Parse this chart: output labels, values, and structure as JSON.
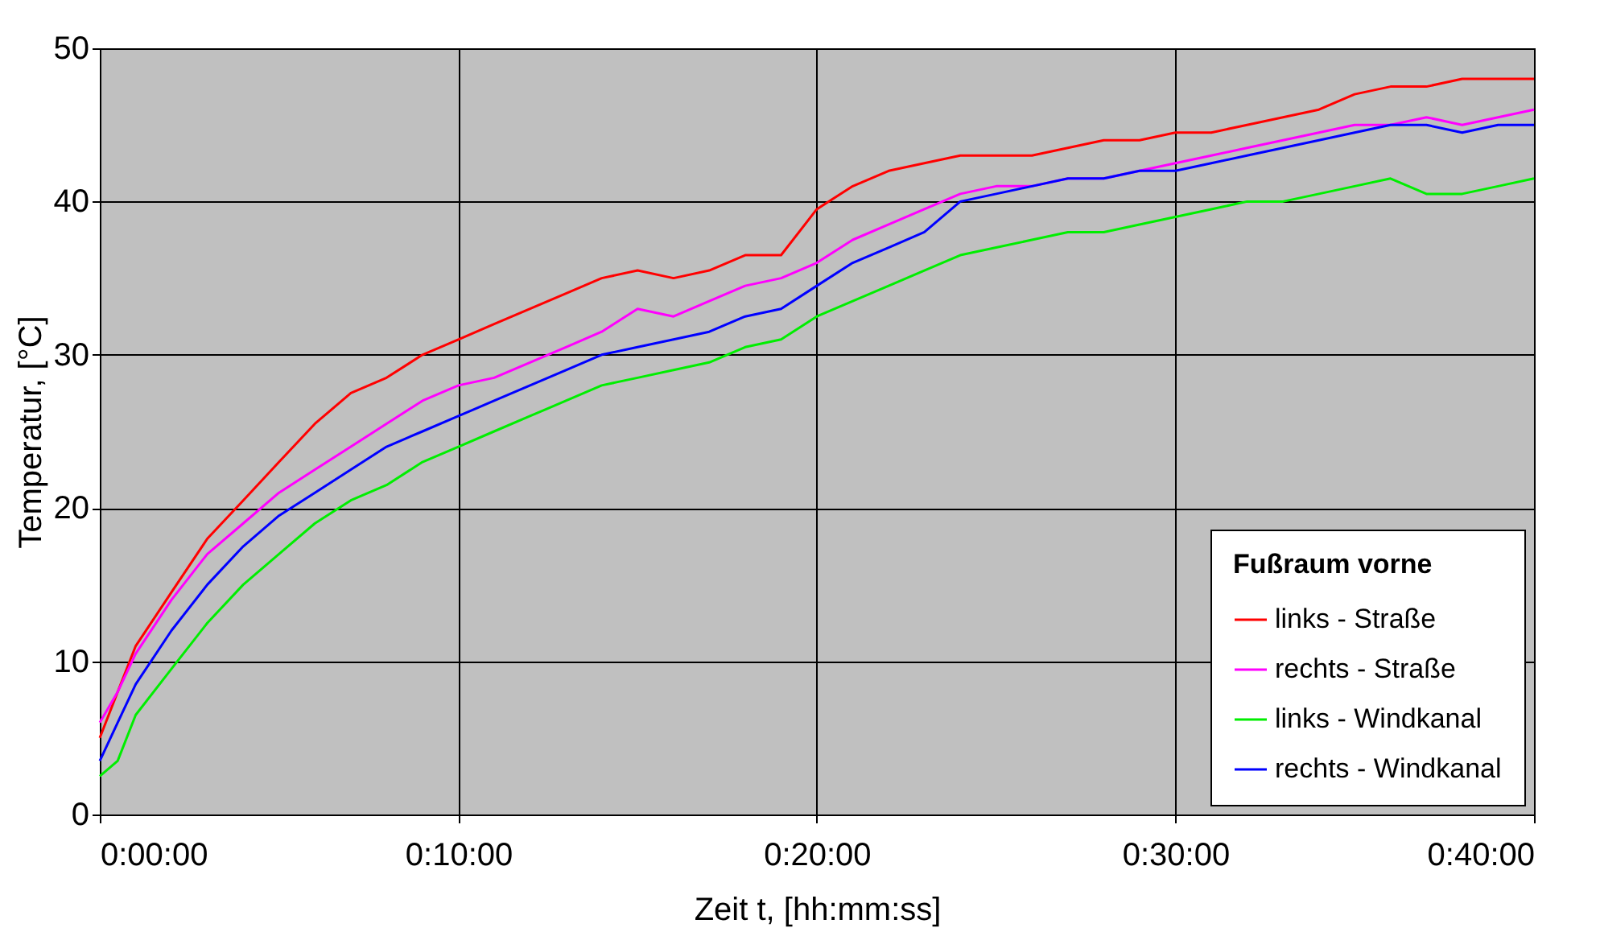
{
  "chart_data": {
    "type": "line",
    "xlabel": "Zeit t, [hh:mm:ss]",
    "ylabel": "Temperatur, [°C]",
    "legend_title": "Fußraum vorne",
    "x": [
      0,
      0.0083,
      0.0167,
      0.0333,
      0.05,
      0.0667,
      0.0833,
      0.1,
      0.1167,
      0.1333,
      0.15,
      0.1667,
      0.1833,
      0.2,
      0.2167,
      0.2333,
      0.25,
      0.2667,
      0.2833,
      0.3,
      0.3167,
      0.3333,
      0.35,
      0.3667,
      0.3833,
      0.4,
      0.4167,
      0.4333,
      0.45,
      0.4667,
      0.4833,
      0.5,
      0.5167,
      0.5333,
      0.55,
      0.5667,
      0.5833,
      0.6,
      0.6167,
      0.6333,
      0.65,
      0.6667
    ],
    "series": [
      {
        "name": "links - Straße",
        "color": "#ff0000",
        "values": [
          5,
          8,
          11,
          14.5,
          18,
          20.5,
          23,
          25.5,
          27.5,
          28.5,
          30,
          31,
          32,
          33,
          34,
          35,
          35.5,
          35,
          35.5,
          36.5,
          36.5,
          39.5,
          41,
          42,
          42.5,
          43,
          43,
          43,
          43.5,
          44,
          44,
          44.5,
          44.5,
          45,
          45.5,
          46,
          47,
          47.5,
          47.5,
          48,
          48,
          48
        ]
      },
      {
        "name": "rechts - Straße",
        "color": "#ff00ff",
        "values": [
          6,
          8,
          10.5,
          14,
          17,
          19,
          21,
          22.5,
          24,
          25.5,
          27,
          28,
          28.5,
          29.5,
          30.5,
          31.5,
          33,
          32.5,
          33.5,
          34.5,
          35,
          36,
          37.5,
          38.5,
          39.5,
          40.5,
          41,
          41,
          41.5,
          41.5,
          42,
          42.5,
          43,
          43.5,
          44,
          44.5,
          45,
          45,
          45.5,
          45,
          45.5,
          46
        ]
      },
      {
        "name": "links - Windkanal",
        "color": "#00ee00",
        "values": [
          2.5,
          3.5,
          6.5,
          9.5,
          12.5,
          15,
          17,
          19,
          20.5,
          21.5,
          23,
          24,
          25,
          26,
          27,
          28,
          28.5,
          29,
          29.5,
          30.5,
          31,
          32.5,
          33.5,
          34.5,
          35.5,
          36.5,
          37,
          37.5,
          38,
          38,
          38.5,
          39,
          39.5,
          40,
          40,
          40.5,
          41,
          41.5,
          40.5,
          40.5,
          41,
          41.5
        ]
      },
      {
        "name": "rechts - Windkanal",
        "color": "#0000ff",
        "values": [
          3.5,
          6,
          8.5,
          12,
          15,
          17.5,
          19.5,
          21,
          22.5,
          24,
          25,
          26,
          27,
          28,
          29,
          30,
          30.5,
          31,
          31.5,
          32.5,
          33,
          34.5,
          36,
          37,
          38,
          40,
          40.5,
          41,
          41.5,
          41.5,
          42,
          42,
          42.5,
          43,
          43.5,
          44,
          44.5,
          45,
          45,
          44.5,
          45,
          45
        ]
      }
    ],
    "xlim": [
      0,
      0.6667
    ],
    "xticks": [
      {
        "value": 0,
        "label": "0:00:00"
      },
      {
        "value": 0.1667,
        "label": "0:10:00"
      },
      {
        "value": 0.3333,
        "label": "0:20:00"
      },
      {
        "value": 0.5,
        "label": "0:30:00"
      },
      {
        "value": 0.6667,
        "label": "0:40:00"
      }
    ],
    "ylim": [
      0,
      50
    ],
    "yticks": [
      0,
      10,
      20,
      30,
      40,
      50
    ],
    "grid": true,
    "legend": "bottom right",
    "marker": "none",
    "line_style": "solid"
  }
}
